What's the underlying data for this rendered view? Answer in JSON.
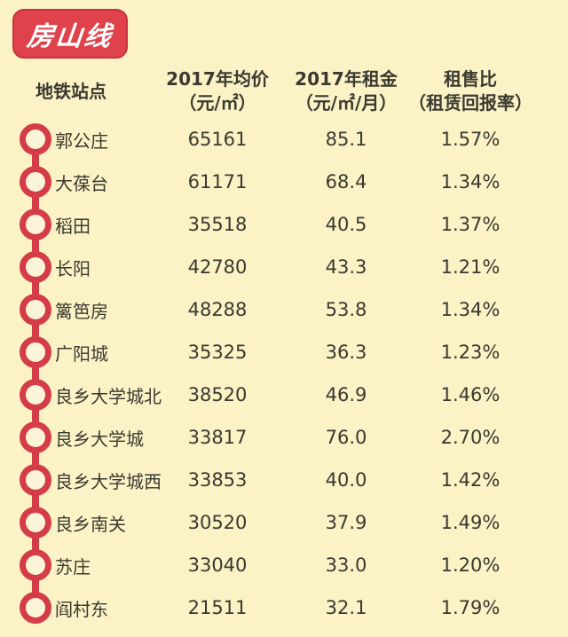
{
  "badge": {
    "label": "房山线"
  },
  "table": {
    "columns": [
      {
        "label": "地铁站点",
        "sub": ""
      },
      {
        "label": "2017年均价",
        "sub": "（元/㎡）"
      },
      {
        "label": "2017年租金",
        "sub": "（元/㎡/月）"
      },
      {
        "label": "租售比",
        "sub": "（租赁回报率）"
      }
    ],
    "rows": [
      {
        "station": "郭公庄",
        "price": "65161",
        "rent": "85.1",
        "ratio": "1.57%"
      },
      {
        "station": "大葆台",
        "price": "61171",
        "rent": "68.4",
        "ratio": "1.34%"
      },
      {
        "station": "稻田",
        "price": "35518",
        "rent": "40.5",
        "ratio": "1.37%"
      },
      {
        "station": "长阳",
        "price": "42780",
        "rent": "43.3",
        "ratio": "1.21%"
      },
      {
        "station": "篱笆房",
        "price": "48288",
        "rent": "53.8",
        "ratio": "1.34%"
      },
      {
        "station": "广阳城",
        "price": "35325",
        "rent": "36.3",
        "ratio": "1.23%"
      },
      {
        "station": "良乡大学城北",
        "price": "38520",
        "rent": "46.9",
        "ratio": "1.46%"
      },
      {
        "station": "良乡大学城",
        "price": "33817",
        "rent": "76.0",
        "ratio": "2.70%"
      },
      {
        "station": "良乡大学城西",
        "price": "33853",
        "rent": "40.0",
        "ratio": "1.42%"
      },
      {
        "station": "良乡南关",
        "price": "30520",
        "rent": "37.9",
        "ratio": "1.49%"
      },
      {
        "station": "苏庄",
        "price": "33040",
        "rent": "33.0",
        "ratio": "1.20%"
      },
      {
        "station": "阎村东",
        "price": "21511",
        "rent": "32.1",
        "ratio": "1.79%"
      }
    ]
  },
  "colors": {
    "background": "#FBF2C6",
    "badge_red": "#E0424B",
    "badge_border_red": "#C8333E",
    "rail_red": "#D43C47",
    "text_dark": "#3A392F",
    "marker_inner": "#FBF4D8"
  },
  "chart_data": {
    "type": "table",
    "title": "房山线",
    "columns": [
      "地铁站点",
      "2017年均价（元/㎡）",
      "2017年租金（元/㎡/月）",
      "租售比（租赁回报率）"
    ],
    "stations": [
      "郭公庄",
      "大葆台",
      "稻田",
      "长阳",
      "篱笆房",
      "广阳城",
      "良乡大学城北",
      "良乡大学城",
      "良乡大学城西",
      "良乡南关",
      "苏庄",
      "阎村东"
    ],
    "price_2017_yuan_per_sqm": [
      65161,
      61171,
      35518,
      42780,
      48288,
      35325,
      38520,
      33817,
      33853,
      30520,
      33040,
      21511
    ],
    "rent_2017_yuan_per_sqm_month": [
      85.1,
      68.4,
      40.5,
      43.3,
      53.8,
      36.3,
      46.9,
      76.0,
      40.0,
      37.9,
      33.0,
      32.1
    ],
    "rent_to_sale_ratio": [
      "1.57%",
      "1.34%",
      "1.37%",
      "1.21%",
      "1.34%",
      "1.23%",
      "1.46%",
      "2.70%",
      "1.42%",
      "1.49%",
      "1.20%",
      "1.79%"
    ],
    "layout": "metro line diagram on left with red station nodes connected by vertical rail"
  }
}
